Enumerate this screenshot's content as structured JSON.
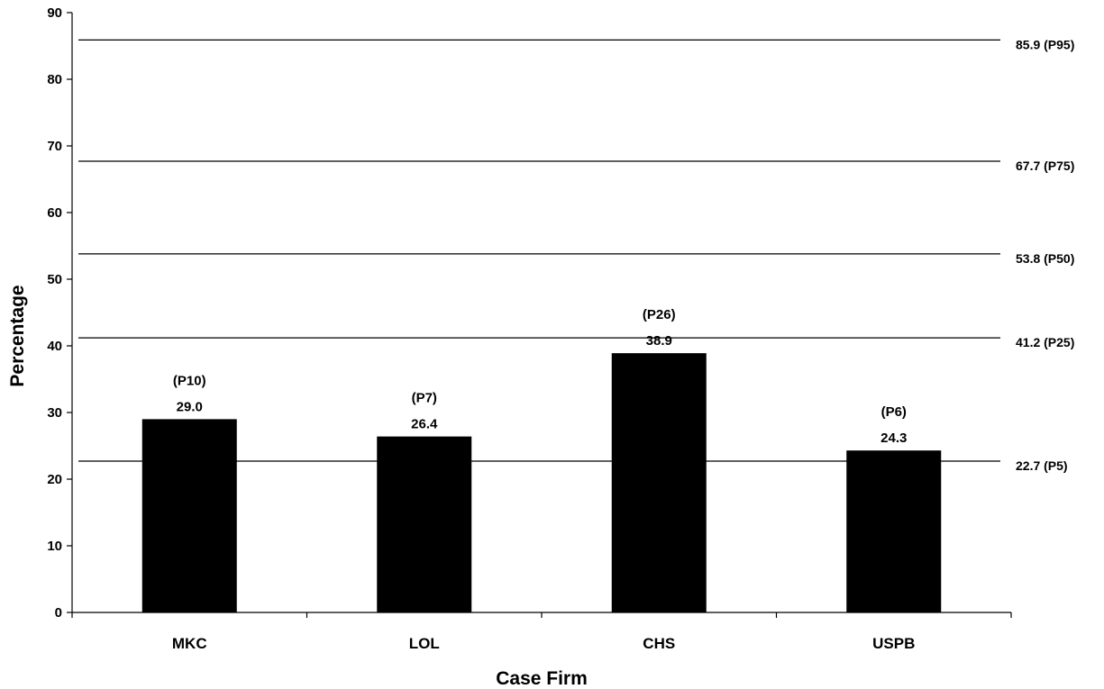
{
  "chart_data": {
    "type": "bar",
    "xlabel": "Case Firm",
    "ylabel": "Percentage",
    "ylim": [
      0,
      90
    ],
    "yticks": [
      0,
      10,
      20,
      30,
      40,
      50,
      60,
      70,
      80,
      90
    ],
    "grid": false,
    "legend": "none",
    "bar_color": "#000000",
    "categories": [
      "MKC",
      "LOL",
      "CHS",
      "USPB"
    ],
    "values": [
      29.0,
      26.4,
      38.9,
      24.3
    ],
    "value_labels": [
      "29.0",
      "26.4",
      "38.9",
      "24.3"
    ],
    "percentile_labels": [
      "(P10)",
      "(P7)",
      "(P26)",
      "(P6)"
    ],
    "reference_lines": [
      {
        "value": 85.9,
        "label": "85.9 (P95)"
      },
      {
        "value": 67.7,
        "label": "67.7 (P75)"
      },
      {
        "value": 53.8,
        "label": "53.8 (P50)"
      },
      {
        "value": 41.2,
        "label": "41.2 (P25)"
      },
      {
        "value": 22.7,
        "label": "22.7 (P5)"
      }
    ]
  }
}
